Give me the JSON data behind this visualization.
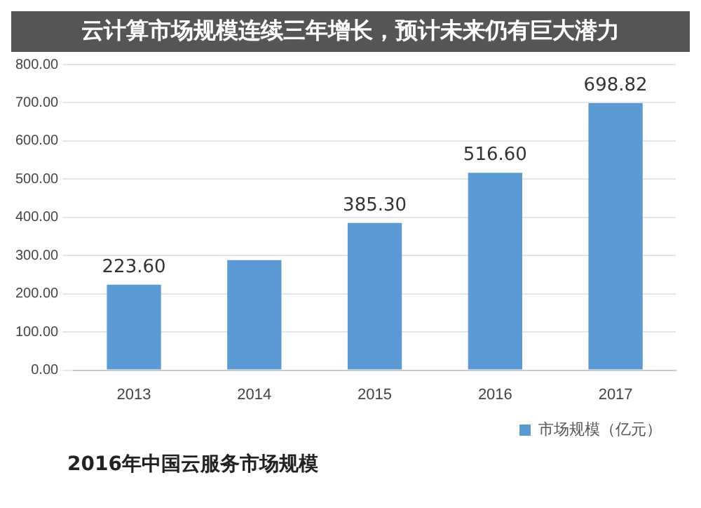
{
  "chart_data": {
    "type": "bar",
    "title": "2016年中国云服务市场规模",
    "subtitle": "云计算市场规模连续三年增长，预计未来仍有巨大潜力",
    "categories": [
      "2013",
      "2014",
      "2015",
      "2016",
      "2017"
    ],
    "series": [
      {
        "name": "市场规模（亿元）",
        "color": "#5b9bd5",
        "values": [
          223.6,
          288,
          385.3,
          516.6,
          698.82
        ],
        "value_labels": [
          "223.60",
          null,
          "385.30",
          "516.60",
          "698.82"
        ]
      }
    ],
    "ylim": [
      0,
      800
    ],
    "yticks": [
      {
        "value": 0,
        "label": "0.00"
      },
      {
        "value": 100,
        "label": "100.00"
      },
      {
        "value": 200,
        "label": "200.00"
      },
      {
        "value": 300,
        "label": "300.00"
      },
      {
        "value": 400,
        "label": "400.00"
      },
      {
        "value": 500,
        "label": "500.00"
      },
      {
        "value": 600,
        "label": "600.00"
      },
      {
        "value": 700,
        "label": "700.00"
      },
      {
        "value": 800,
        "label": "800.00"
      }
    ],
    "grid": "y",
    "legend": "bottom right"
  }
}
